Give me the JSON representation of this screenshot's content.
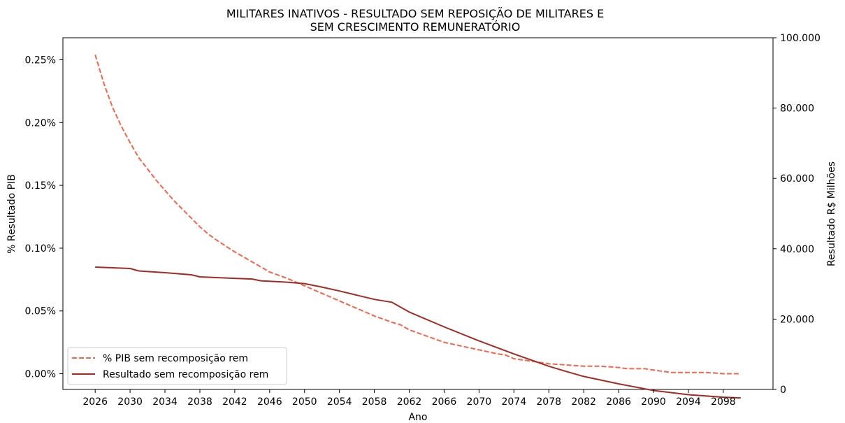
{
  "chart_data": {
    "type": "line",
    "title_line1": "MILITARES INATIVOS - RESULTADO SEM REPOSIÇÃO DE MILITARES E",
    "title_line2": "SEM CRESCIMENTO REMUNERATÓRIO",
    "xlabel": "Ano",
    "ylabel_left": "% Resultado PIB",
    "ylabel_right": "Resultado R$ Milhões",
    "xlim": [
      2022.3,
      2103.7
    ],
    "x_ticks": [
      2026,
      2030,
      2034,
      2038,
      2042,
      2046,
      2050,
      2054,
      2058,
      2062,
      2066,
      2070,
      2074,
      2078,
      2082,
      2086,
      2090,
      2094,
      2098
    ],
    "ylim_left": [
      -0.0125,
      0.2675
    ],
    "y_ticks_left": [
      0.0,
      0.05,
      0.1,
      0.15,
      0.2,
      0.25
    ],
    "y_tick_labels_left": [
      "0.00%",
      "0.05%",
      "0.10%",
      "0.15%",
      "0.20%",
      "0.25%"
    ],
    "ylim_right": [
      0,
      100000
    ],
    "y_ticks_right": [
      0,
      20000,
      40000,
      60000,
      80000,
      100000
    ],
    "y_tick_labels_right": [
      "0",
      "20.000",
      "40.000",
      "60.000",
      "80.000",
      "100.000"
    ],
    "grid": false,
    "legend_position": "bottom-left",
    "colors": {
      "pib": "#f8644a",
      "resultado": "#a52a24"
    },
    "series": [
      {
        "name": "% PIB sem recomposição rem",
        "axis": "left",
        "style": "dashed",
        "x": [
          2026,
          2027,
          2028,
          2029,
          2030,
          2031,
          2032,
          2033,
          2034,
          2035,
          2036,
          2037,
          2038,
          2039,
          2040,
          2042,
          2044,
          2045,
          2046,
          2048,
          2050,
          2052,
          2054,
          2055,
          2056,
          2058,
          2060,
          2061,
          2062,
          2064,
          2066,
          2068,
          2070,
          2072,
          2073,
          2074,
          2076,
          2077,
          2078,
          2080,
          2082,
          2084,
          2086,
          2087,
          2088,
          2089,
          2090,
          2091,
          2092,
          2094,
          2096,
          2098,
          2100
        ],
        "y": [
          0.254,
          0.231,
          0.212,
          0.197,
          0.184,
          0.172,
          0.163,
          0.154,
          0.146,
          0.138,
          0.131,
          0.124,
          0.117,
          0.111,
          0.106,
          0.097,
          0.089,
          0.085,
          0.081,
          0.076,
          0.07,
          0.064,
          0.058,
          0.055,
          0.052,
          0.046,
          0.041,
          0.039,
          0.035,
          0.03,
          0.025,
          0.022,
          0.019,
          0.016,
          0.015,
          0.012,
          0.01,
          0.009,
          0.008,
          0.007,
          0.006,
          0.006,
          0.005,
          0.004,
          0.004,
          0.004,
          0.003,
          0.002,
          0.001,
          0.001,
          0.001,
          0.0,
          0.0
        ]
      },
      {
        "name": "Resultado sem recomposição rem",
        "axis": "right",
        "style": "solid",
        "x": [
          2026,
          2030,
          2031,
          2034,
          2037,
          2038,
          2042,
          2044,
          2045,
          2048,
          2050,
          2052,
          2054,
          2056,
          2058,
          2060,
          2062,
          2066,
          2070,
          2074,
          2078,
          2080,
          2082,
          2086,
          2090,
          2094,
          2098,
          2100
        ],
        "y": [
          34800,
          34400,
          33700,
          33200,
          32600,
          32000,
          31600,
          31400,
          30900,
          30500,
          30100,
          29100,
          28000,
          26800,
          25600,
          24800,
          22000,
          17800,
          13800,
          10100,
          6600,
          5100,
          3700,
          1600,
          -300,
          -1500,
          -2200,
          -2400
        ]
      }
    ]
  }
}
